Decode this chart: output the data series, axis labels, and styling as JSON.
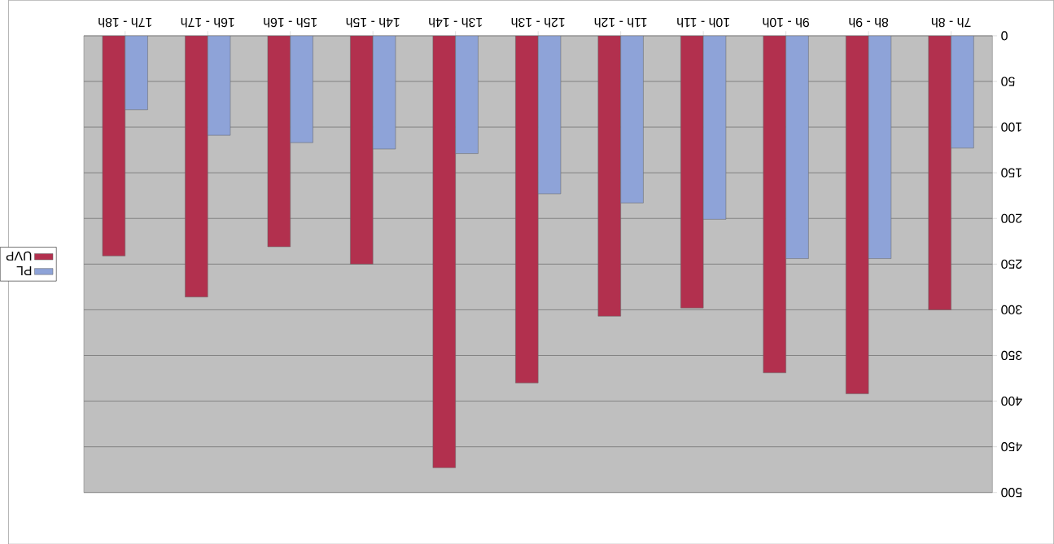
{
  "chart_data": {
    "type": "bar",
    "categories": [
      "17h - 18h",
      "16h - 17h",
      "15h - 16h",
      "14h - 15h",
      "13h - 14h",
      "12h - 13h",
      "11h - 12h",
      "10h - 11h",
      "9h - 10h",
      "8h - 9h",
      "7h - 8h"
    ],
    "series": [
      {
        "name": "UVP",
        "color": "#b2304e",
        "values": [
          241,
          286,
          231,
          250,
          473,
          380,
          307,
          298,
          369,
          392,
          300
        ]
      },
      {
        "name": "PL",
        "color": "#8ea3d8",
        "values": [
          81,
          109,
          117,
          124,
          129,
          173,
          183,
          201,
          244,
          244,
          123
        ]
      }
    ],
    "ylim": [
      500,
      0
    ],
    "yticks": [
      0,
      50,
      100,
      150,
      200,
      250,
      300,
      350,
      400,
      450,
      500
    ],
    "grid": "y",
    "legend": "left"
  }
}
